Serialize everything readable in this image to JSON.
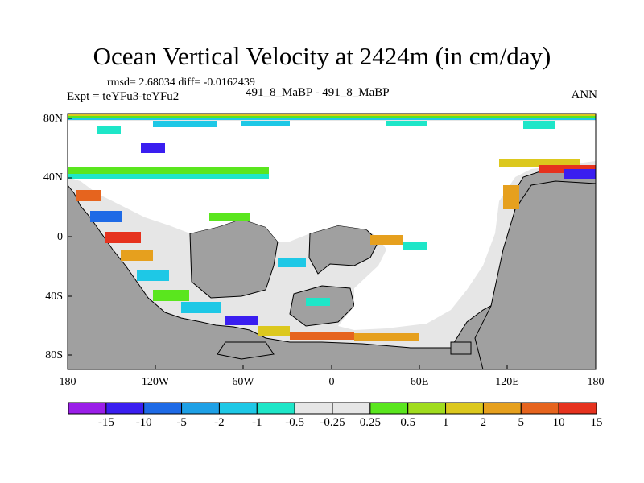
{
  "title": "Ocean Vertical Velocity at 2424m (in cm/day)",
  "stats": "rmsd= 2.68034 diff= -0.0162439",
  "expt": "Expt = teYFu3-teYFu2",
  "case": "491_8_MaBP - 491_8_MaBP",
  "season": "ANN",
  "lat_ticks": [
    "80N",
    "40N",
    "0",
    "40S",
    "80S"
  ],
  "lon_ticks": [
    "180",
    "120W",
    "60W",
    "0",
    "60E",
    "120E",
    "180"
  ],
  "colorbar": {
    "labels": [
      "-15",
      "-10",
      "-5",
      "-2",
      "-1",
      "-0.5",
      "-0.25",
      "0.25",
      "0.5",
      "1",
      "2",
      "5",
      "10",
      "15"
    ],
    "colors": [
      "#9a1ee8",
      "#3a1ef0",
      "#1e6ae6",
      "#1ea0e6",
      "#1ec8e6",
      "#1ee6c8",
      "#e6e6e6",
      "#e6e6e6",
      "#5ae61e",
      "#a0dc1e",
      "#dcc81e",
      "#e6a01e",
      "#e6641e",
      "#e6321e"
    ]
  },
  "colors": {
    "land": "#a0a0a0",
    "ocean_neutral": "#e6e6e6"
  }
}
